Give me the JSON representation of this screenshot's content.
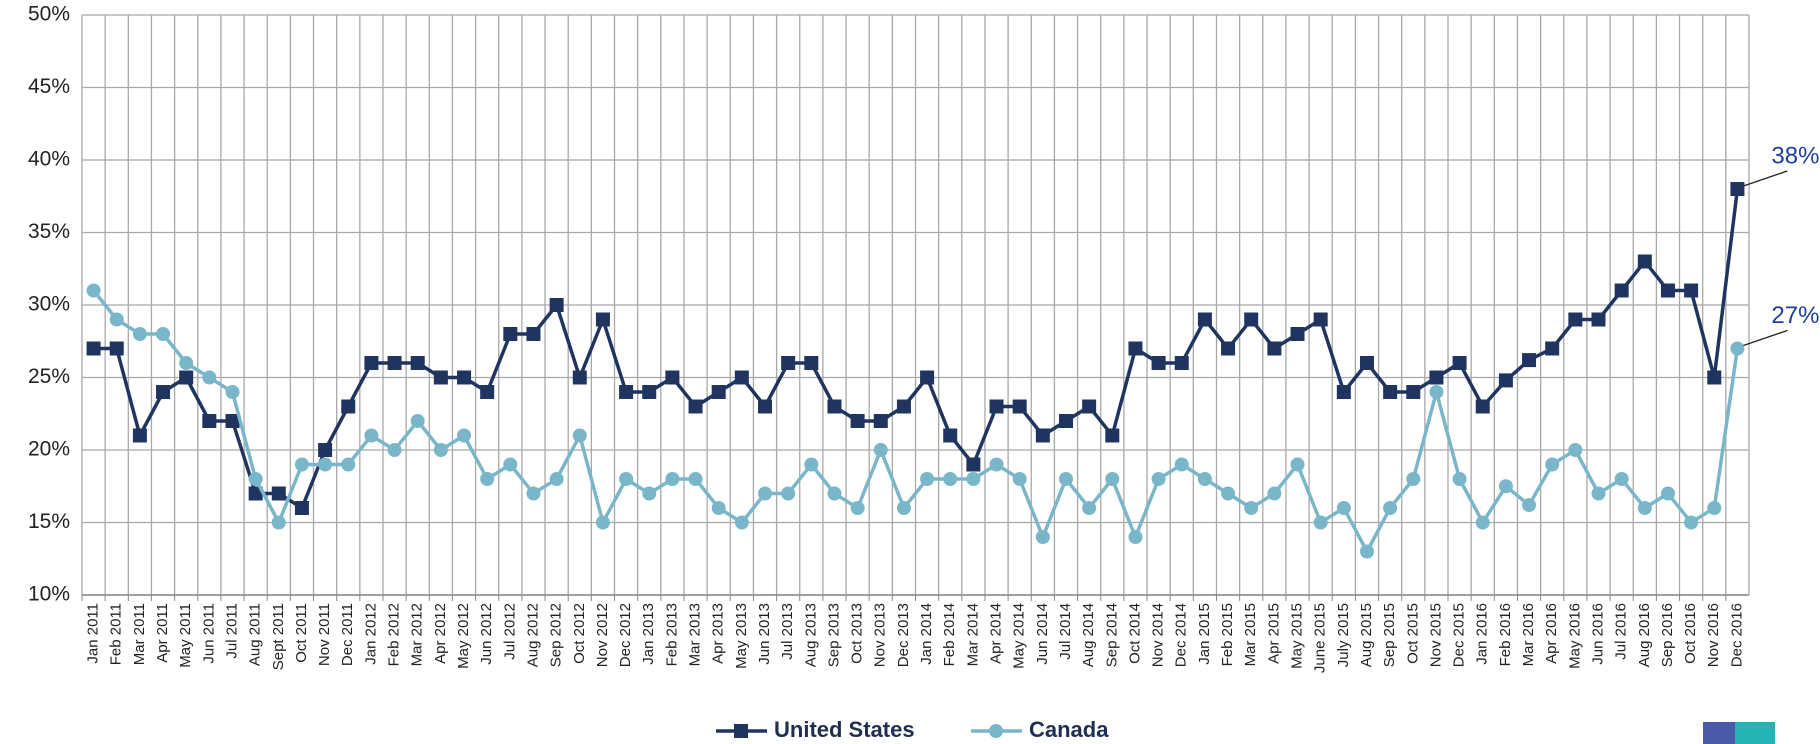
{
  "chart_data": {
    "type": "line",
    "categories": [
      "Jan 2011",
      "Feb 2011",
      "Mar 2011",
      "Apr 2011",
      "May 2011",
      "Jun 2011",
      "Jul 2011",
      "Aug 2011",
      "Sept 2011",
      "Oct 2011",
      "Nov 2011",
      "Dec 2011",
      "Jan 2012",
      "Feb 2012",
      "Mar 2012",
      "Apr 2012",
      "May 2012",
      "Jun 2012",
      "Jul 2012",
      "Aug 2012",
      "Sep 2012",
      "Oct 2012",
      "Nov 2012",
      "Dec 2012",
      "Jan 2013",
      "Feb 2013",
      "Mar 2013",
      "Apr 2013",
      "May 2013",
      "Jun 2013",
      "Jul 2013",
      "Aug 2013",
      "Sep 2013",
      "Oct 2013",
      "Nov 2013",
      "Dec 2013",
      "Jan 2014",
      "Feb 2014",
      "Mar 2014",
      "Apr 2014",
      "May 2014",
      "Jun 2014",
      "Jul 2014",
      "Aug 2014",
      "Sep 2014",
      "Oct 2014",
      "Nov 2014",
      "Dec 2014",
      "Jan 2015",
      "Feb 2015",
      "Mar 2015",
      "Apr 2015",
      "May 2015",
      "June 2015",
      "July 2015",
      "Aug 2015",
      "Sep 2015",
      "Oct 2015",
      "Nov 2015",
      "Dec 2015",
      "Jan 2016",
      "Feb 2016",
      "Mar 2016",
      "Apr 2016",
      "May 2016",
      "Jun 2016",
      "Jul 2016",
      "Aug 2016",
      "Sep 2016",
      "Oct 2016",
      "Nov 2016",
      "Dec 2016"
    ],
    "series": [
      {
        "name": "United States",
        "color": "#1f3560",
        "marker": "square",
        "values": [
          27,
          27,
          21,
          24,
          25,
          22,
          22,
          17,
          17,
          16,
          20,
          23,
          26,
          26,
          26,
          25,
          25,
          24,
          28,
          28,
          30,
          25,
          29,
          24,
          24,
          25,
          23,
          24,
          25,
          23,
          26,
          26,
          23,
          22,
          22,
          23,
          25,
          21,
          19,
          23,
          23,
          21,
          22,
          23,
          21,
          27,
          26,
          26,
          29,
          27,
          29,
          27,
          28,
          29,
          24,
          26,
          24,
          24,
          25,
          26,
          23,
          24.8,
          26.2,
          27,
          29,
          29,
          31,
          33,
          31,
          31,
          25,
          38
        ],
        "value_labels": [
          null,
          null,
          null,
          null,
          null,
          null,
          null,
          null,
          null,
          null,
          null,
          null,
          null,
          null,
          null,
          null,
          null,
          null,
          null,
          null,
          null,
          null,
          null,
          null,
          null,
          null,
          null,
          null,
          null,
          null,
          null,
          null,
          null,
          null,
          null,
          null,
          null,
          null,
          null,
          null,
          null,
          null,
          null,
          null,
          null,
          null,
          null,
          null,
          null,
          null,
          null,
          null,
          null,
          null,
          null,
          null,
          null,
          null,
          null,
          null,
          null,
          null,
          null,
          null,
          null,
          null,
          null,
          null,
          null,
          null,
          null,
          "38%"
        ]
      },
      {
        "name": "Canada",
        "color": "#7ab6ca",
        "marker": "circle",
        "values": [
          31,
          29,
          28,
          28,
          26,
          25,
          24,
          18,
          15,
          19,
          19,
          19,
          21,
          20,
          22,
          20,
          21,
          18,
          19,
          17,
          18,
          21,
          15,
          18,
          17,
          18,
          18,
          16,
          15,
          17,
          17,
          19,
          17,
          16,
          20,
          16,
          18,
          18,
          18,
          19,
          18,
          14,
          18,
          16,
          18,
          14,
          18,
          19,
          18,
          17,
          16,
          17,
          19,
          15,
          16,
          13,
          16,
          18,
          24,
          18,
          15,
          17.5,
          16.2,
          19,
          20,
          17,
          18,
          16,
          17,
          15,
          16,
          27
        ],
        "value_labels": [
          null,
          null,
          null,
          null,
          null,
          null,
          null,
          null,
          null,
          null,
          null,
          null,
          null,
          null,
          null,
          null,
          null,
          null,
          null,
          null,
          null,
          null,
          null,
          null,
          null,
          null,
          null,
          null,
          null,
          null,
          null,
          null,
          null,
          null,
          null,
          null,
          null,
          null,
          null,
          null,
          null,
          null,
          null,
          null,
          null,
          null,
          null,
          null,
          null,
          null,
          null,
          null,
          null,
          null,
          null,
          null,
          null,
          null,
          null,
          null,
          null,
          null,
          null,
          null,
          null,
          null,
          null,
          null,
          null,
          null,
          null,
          "27%"
        ]
      }
    ],
    "ylim": [
      10,
      50
    ],
    "yticks": [
      {
        "value": 10,
        "label": "10%"
      },
      {
        "value": 15,
        "label": "15%"
      },
      {
        "value": 20,
        "label": "20%"
      },
      {
        "value": 25,
        "label": "25%"
      },
      {
        "value": 30,
        "label": "30%"
      },
      {
        "value": 35,
        "label": "35%"
      },
      {
        "value": 40,
        "label": "40%"
      },
      {
        "value": 45,
        "label": "45%"
      },
      {
        "value": 50,
        "label": "50%"
      }
    ],
    "grid": true,
    "legend": "bottom"
  }
}
